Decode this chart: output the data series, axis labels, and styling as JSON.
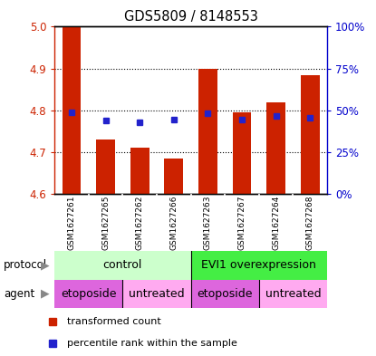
{
  "title": "GDS5809 / 8148553",
  "samples": [
    "GSM1627261",
    "GSM1627265",
    "GSM1627262",
    "GSM1627266",
    "GSM1627263",
    "GSM1627267",
    "GSM1627264",
    "GSM1627268"
  ],
  "bar_values": [
    5.0,
    4.73,
    4.71,
    4.685,
    4.9,
    4.795,
    4.82,
    4.885
  ],
  "bar_base": 4.6,
  "dot_values": [
    4.795,
    4.775,
    4.772,
    4.778,
    4.793,
    4.778,
    4.787,
    4.782
  ],
  "ylim": [
    4.6,
    5.0
  ],
  "y2lim": [
    0,
    100
  ],
  "yticks": [
    4.6,
    4.7,
    4.8,
    4.9,
    5.0
  ],
  "y2ticks": [
    0,
    25,
    50,
    75,
    100
  ],
  "y2ticklabels": [
    "0%",
    "25%",
    "50%",
    "75%",
    "100%"
  ],
  "bar_color": "#cc2200",
  "dot_color": "#2222cc",
  "protocol_labels": [
    "control",
    "EVI1 overexpression"
  ],
  "protocol_color_left": "#ccffcc",
  "protocol_color_right": "#44ee44",
  "agent_labels": [
    "etoposide",
    "untreated",
    "etoposide",
    "untreated"
  ],
  "agent_color_odd": "#dd66dd",
  "agent_color_even": "#ffaaf0",
  "legend_items": [
    "transformed count",
    "percentile rank within the sample"
  ],
  "legend_colors": [
    "#cc2200",
    "#2222cc"
  ],
  "sample_bg_color": "#cccccc",
  "yaxis_color": "#cc2200",
  "y2axis_color": "#0000cc",
  "left_label_color": "#888888",
  "arrow_color": "#888888"
}
